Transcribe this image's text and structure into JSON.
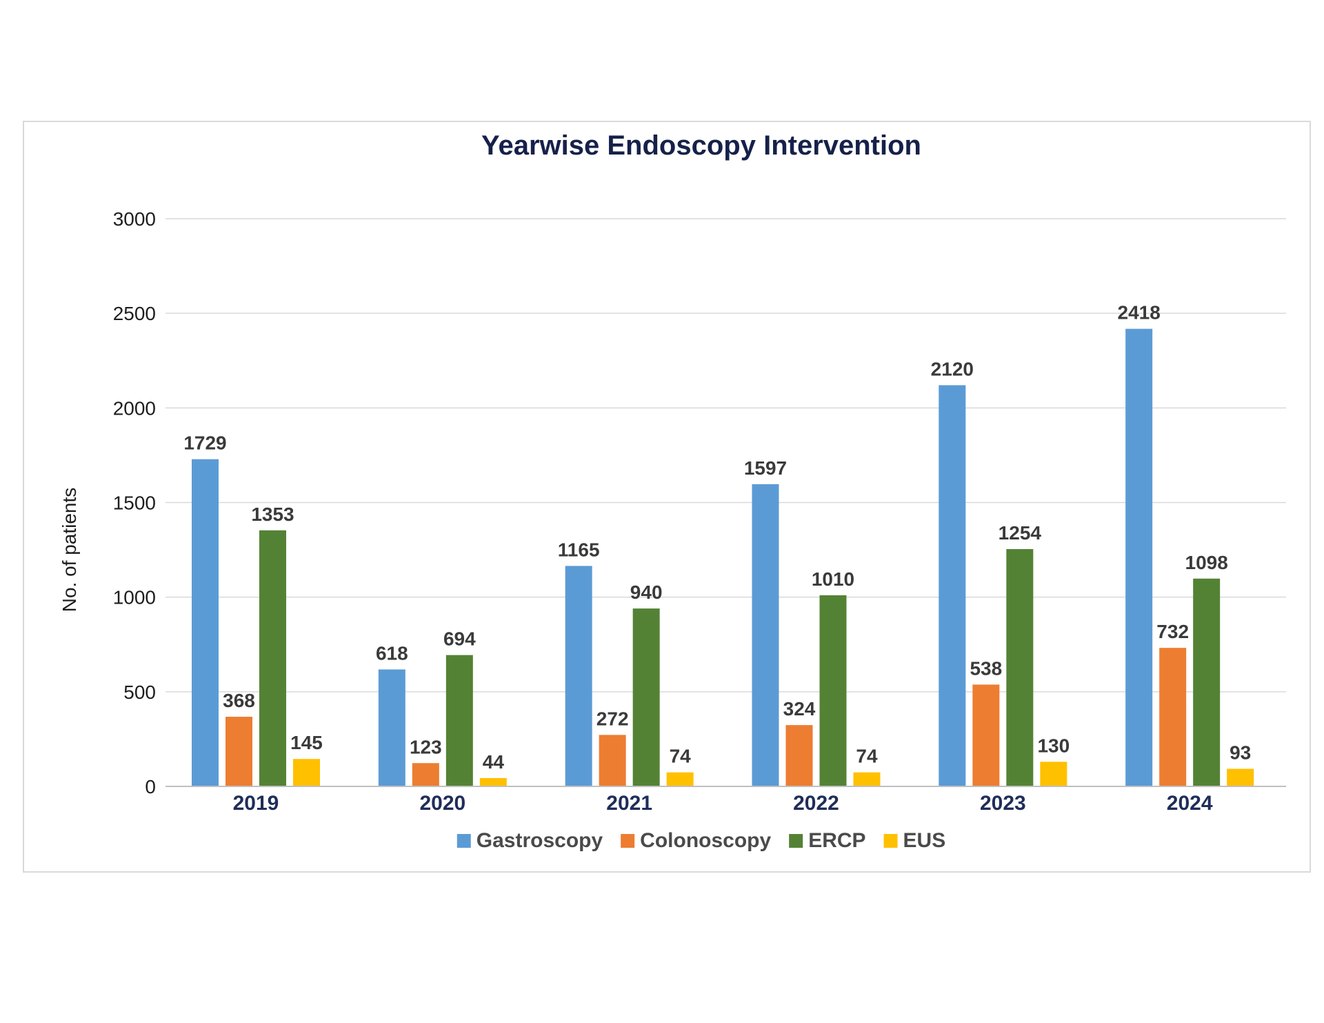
{
  "chart_data": {
    "type": "bar",
    "title": "Yearwise Endoscopy Intervention",
    "xlabel": "",
    "ylabel": "No. of patients",
    "ylim": [
      0,
      3000
    ],
    "yticks": [
      "0",
      "500",
      "1000",
      "1500",
      "2000",
      "2500",
      "3000"
    ],
    "categories": [
      "2019",
      "2020",
      "2021",
      "2022",
      "2023",
      "2024"
    ],
    "grid": true,
    "legend_position": "bottom",
    "series": [
      {
        "name": "Gastroscopy",
        "color": "#5b9bd5",
        "values": [
          1729,
          618,
          1165,
          1597,
          2120,
          2418
        ]
      },
      {
        "name": "Colonoscopy",
        "color": "#ed7d31",
        "values": [
          368,
          123,
          272,
          324,
          538,
          732
        ]
      },
      {
        "name": "ERCP",
        "color": "#548235",
        "values": [
          1353,
          694,
          940,
          1010,
          1254,
          1098
        ]
      },
      {
        "name": "EUS",
        "color": "#ffc000",
        "values": [
          145,
          44,
          74,
          74,
          130,
          93
        ]
      }
    ]
  }
}
